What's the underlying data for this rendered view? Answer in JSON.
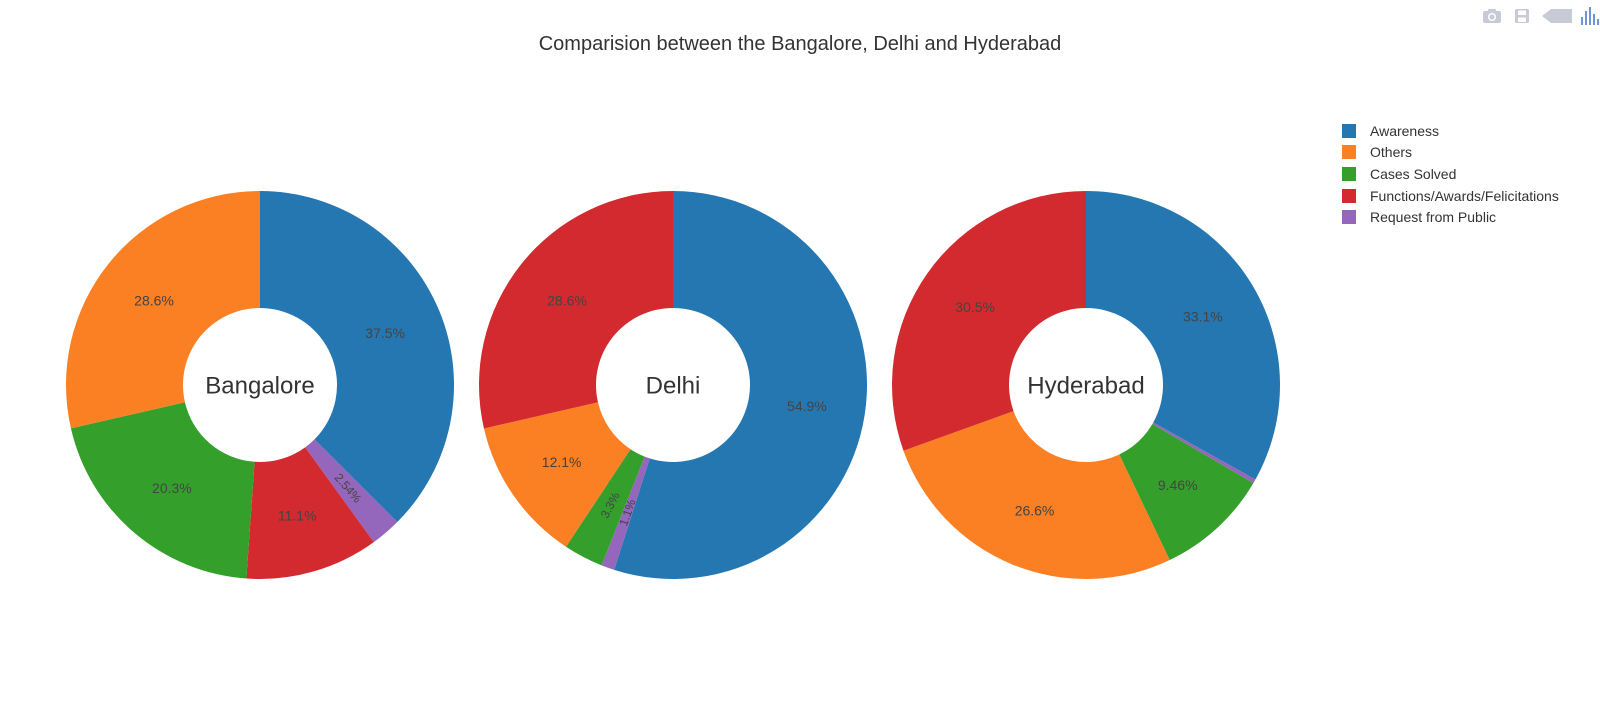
{
  "colors": {
    "awareness": "#2577b2",
    "others": "#fb7f23",
    "cases_solved": "#34a02b",
    "functions": "#d22a2e",
    "request": "#9466bc"
  },
  "toolbar": {
    "icons": [
      "camera-icon",
      "save-icon",
      "pan-icon",
      "bar-chart-icon"
    ]
  },
  "chart_data": {
    "type": "pie",
    "title": "Comparision between the Bangalore, Delhi and Hyderabad",
    "hole": true,
    "legend_placement": "top-right",
    "legend": [
      {
        "label": "Awareness",
        "color": "#2577b2"
      },
      {
        "label": "Others",
        "color": "#fb7f23"
      },
      {
        "label": "Cases Solved",
        "color": "#34a02b"
      },
      {
        "label": "Functions/Awards/Felicitations",
        "color": "#d22a2e"
      },
      {
        "label": "Request from Public",
        "color": "#9466bc"
      }
    ],
    "pies": [
      {
        "center_label": "Bangalore",
        "slices": [
          {
            "label": "Awareness",
            "value": 37.5,
            "text": "37.5%",
            "color": "#2577b2"
          },
          {
            "label": "Request from Public",
            "value": 2.54,
            "text": "2.54%",
            "color": "#9466bc"
          },
          {
            "label": "Functions/Awards/Felicitations",
            "value": 11.1,
            "text": "11.1%",
            "color": "#d22a2e"
          },
          {
            "label": "Cases Solved",
            "value": 20.3,
            "text": "20.3%",
            "color": "#34a02b"
          },
          {
            "label": "Others",
            "value": 28.6,
            "text": "28.6%",
            "color": "#fb7f23"
          }
        ]
      },
      {
        "center_label": "Delhi",
        "slices": [
          {
            "label": "Awareness",
            "value": 54.9,
            "text": "54.9%",
            "color": "#2577b2"
          },
          {
            "label": "Request from Public",
            "value": 1.1,
            "text": "1.1%",
            "color": "#9466bc"
          },
          {
            "label": "Cases Solved",
            "value": 3.3,
            "text": "3.3%",
            "color": "#34a02b"
          },
          {
            "label": "Others",
            "value": 12.1,
            "text": "12.1%",
            "color": "#fb7f23"
          },
          {
            "label": "Functions/Awards/Felicitations",
            "value": 28.6,
            "text": "28.6%",
            "color": "#d22a2e"
          }
        ]
      },
      {
        "center_label": "Hyderabad",
        "slices": [
          {
            "label": "Awareness",
            "value": 33.1,
            "text": "33.1%",
            "color": "#2577b2"
          },
          {
            "label": "Request from Public",
            "value": 0.34,
            "text": "",
            "color": "#9466bc"
          },
          {
            "label": "Cases Solved",
            "value": 9.46,
            "text": "9.46%",
            "color": "#34a02b"
          },
          {
            "label": "Others",
            "value": 26.6,
            "text": "26.6%",
            "color": "#fb7f23"
          },
          {
            "label": "Functions/Awards/Felicitations",
            "value": 30.5,
            "text": "30.5%",
            "color": "#d22a2e"
          }
        ]
      }
    ]
  }
}
